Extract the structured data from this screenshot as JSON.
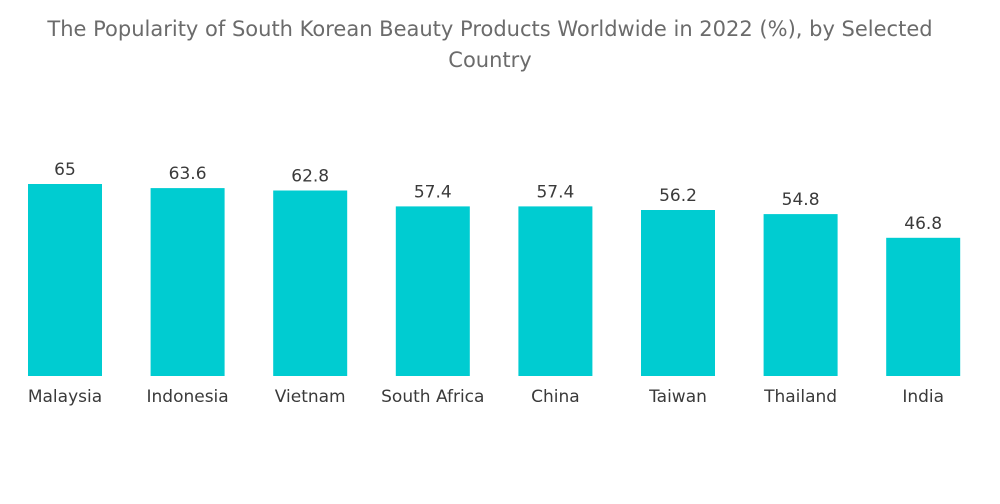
{
  "chart_data": {
    "type": "bar",
    "title": "The Popularity of South Korean Beauty Products Worldwide in 2022 (%), by Selected Country",
    "categories": [
      "Malaysia",
      "Indonesia",
      "Vietnam",
      "South Africa",
      "China",
      "Taiwan",
      "Thailand",
      "India"
    ],
    "values": [
      65,
      63.6,
      62.8,
      57.4,
      57.4,
      56.2,
      54.8,
      46.8
    ],
    "value_labels": [
      "65",
      "63.6",
      "62.8",
      "57.4",
      "57.4",
      "56.2",
      "54.8",
      "46.8"
    ],
    "xlabel": "",
    "ylabel": "",
    "ylim": [
      0,
      65
    ],
    "grid": false,
    "legend": "none",
    "bar_color": "#00CCD1"
  }
}
